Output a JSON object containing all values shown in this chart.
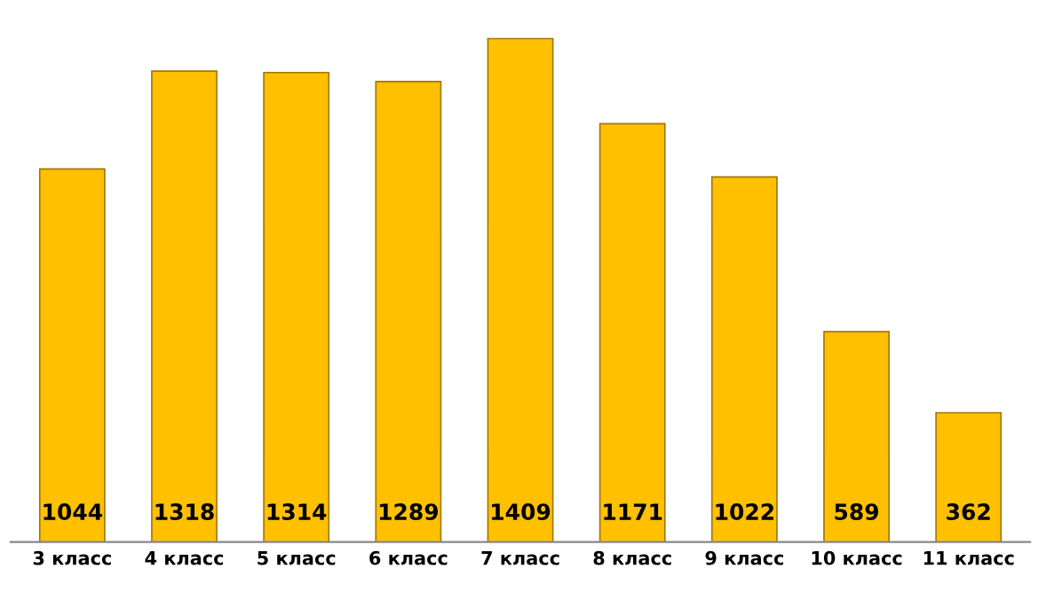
{
  "chart_data": {
    "type": "bar",
    "categories": [
      "3 класс",
      "4 класс",
      "5 класс",
      "6 класс",
      "7 класс",
      "8 класс",
      "9 класс",
      "10 класс",
      "11 класс"
    ],
    "values": [
      1044,
      1318,
      1314,
      1289,
      1409,
      1171,
      1022,
      589,
      362
    ],
    "color": "#ffc000",
    "data_labels": true,
    "tick_labels": "x",
    "grid": false,
    "legend": false
  }
}
